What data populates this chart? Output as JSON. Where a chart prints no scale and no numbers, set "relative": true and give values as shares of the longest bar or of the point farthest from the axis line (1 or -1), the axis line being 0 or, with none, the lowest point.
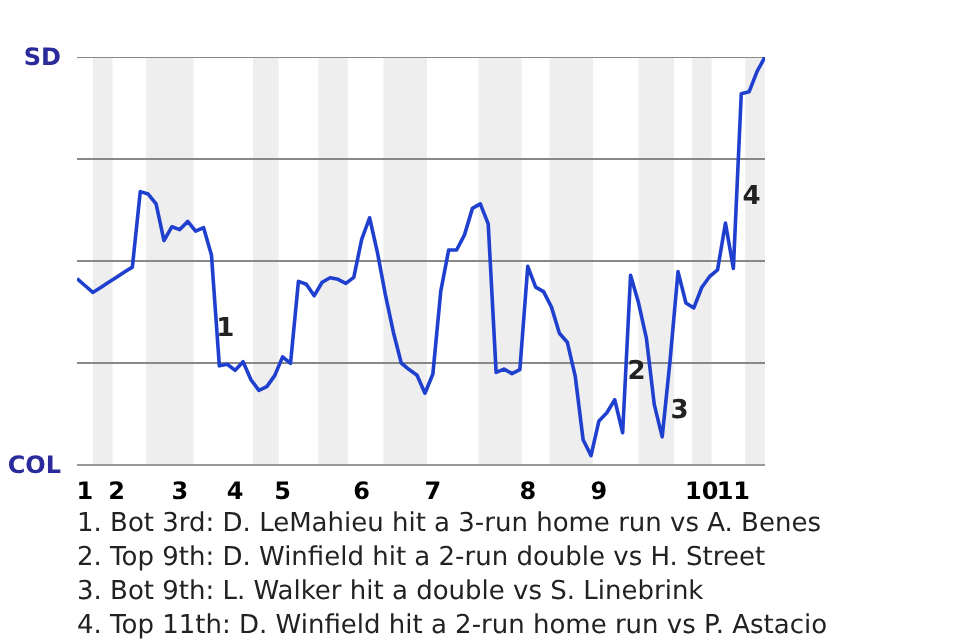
{
  "chart_data": {
    "type": "line",
    "relative": true,
    "categories": [
      null,
      "1",
      null,
      null,
      null,
      "2",
      null,
      null,
      null,
      null,
      null,
      null,
      null,
      "3",
      null,
      null,
      null,
      null,
      null,
      null,
      "4",
      null,
      null,
      null,
      null,
      null,
      "5",
      null,
      null,
      null,
      null,
      null,
      null,
      null,
      null,
      null,
      "6",
      null,
      null,
      null,
      null,
      null,
      null,
      null,
      null,
      "7",
      null,
      null,
      null,
      null,
      null,
      null,
      null,
      null,
      null,
      null,
      null,
      "8",
      null,
      null,
      null,
      null,
      null,
      null,
      null,
      null,
      "9",
      null,
      null,
      null,
      null,
      null,
      null,
      null,
      null,
      null,
      null,
      null,
      null,
      "10",
      null,
      null,
      null,
      "11",
      null,
      null,
      null,
      null
    ],
    "values": [
      0.457,
      0.44,
      0.423,
      0.435,
      0.448,
      0.46,
      0.473,
      0.485,
      0.67,
      0.664,
      0.64,
      0.55,
      0.584,
      0.577,
      0.597,
      0.573,
      0.582,
      0.515,
      0.243,
      0.247,
      0.232,
      0.253,
      0.209,
      0.183,
      0.192,
      0.219,
      0.265,
      0.249,
      0.45,
      0.443,
      0.415,
      0.448,
      0.459,
      0.455,
      0.445,
      0.46,
      0.553,
      0.606,
      0.52,
      0.417,
      0.326,
      0.25,
      0.234,
      0.22,
      0.176,
      0.223,
      0.426,
      0.527,
      0.527,
      0.564,
      0.629,
      0.64,
      0.591,
      0.227,
      0.235,
      0.224,
      0.234,
      0.487,
      0.436,
      0.425,
      0.387,
      0.323,
      0.301,
      0.218,
      0.062,
      0.023,
      0.108,
      0.128,
      0.16,
      0.079,
      0.465,
      0.398,
      0.311,
      0.148,
      0.069,
      0.257,
      0.474,
      0.397,
      0.385,
      0.435,
      0.462,
      0.478,
      0.593,
      0.482,
      0.91,
      0.915,
      0.965,
      1
    ],
    "color": "#1f3fcf",
    "ref_lines": [
      {
        "axis": "y",
        "value": 0.25,
        "color": "#888888"
      },
      {
        "axis": "y",
        "value": 0.5,
        "color": "#888888"
      },
      {
        "axis": "y",
        "value": 0.75,
        "color": "#888888"
      },
      {
        "axis": "y",
        "value": 1,
        "color": "#888888"
      }
    ],
    "annotations": [
      "SD",
      "COL",
      "1",
      "2",
      "3",
      "4",
      "1. Bot 3rd: D. LeMahieu hit a 3-run home run vs A. Benes",
      "2. Top 9th: D. Winfield hit a 2-run double vs H. Street",
      "3. Bot 9th: L. Walker hit a double vs S. Linebrink",
      "4. Top 11th: D. Winfield hit a 2-run home run vs P. Astacio"
    ]
  }
}
